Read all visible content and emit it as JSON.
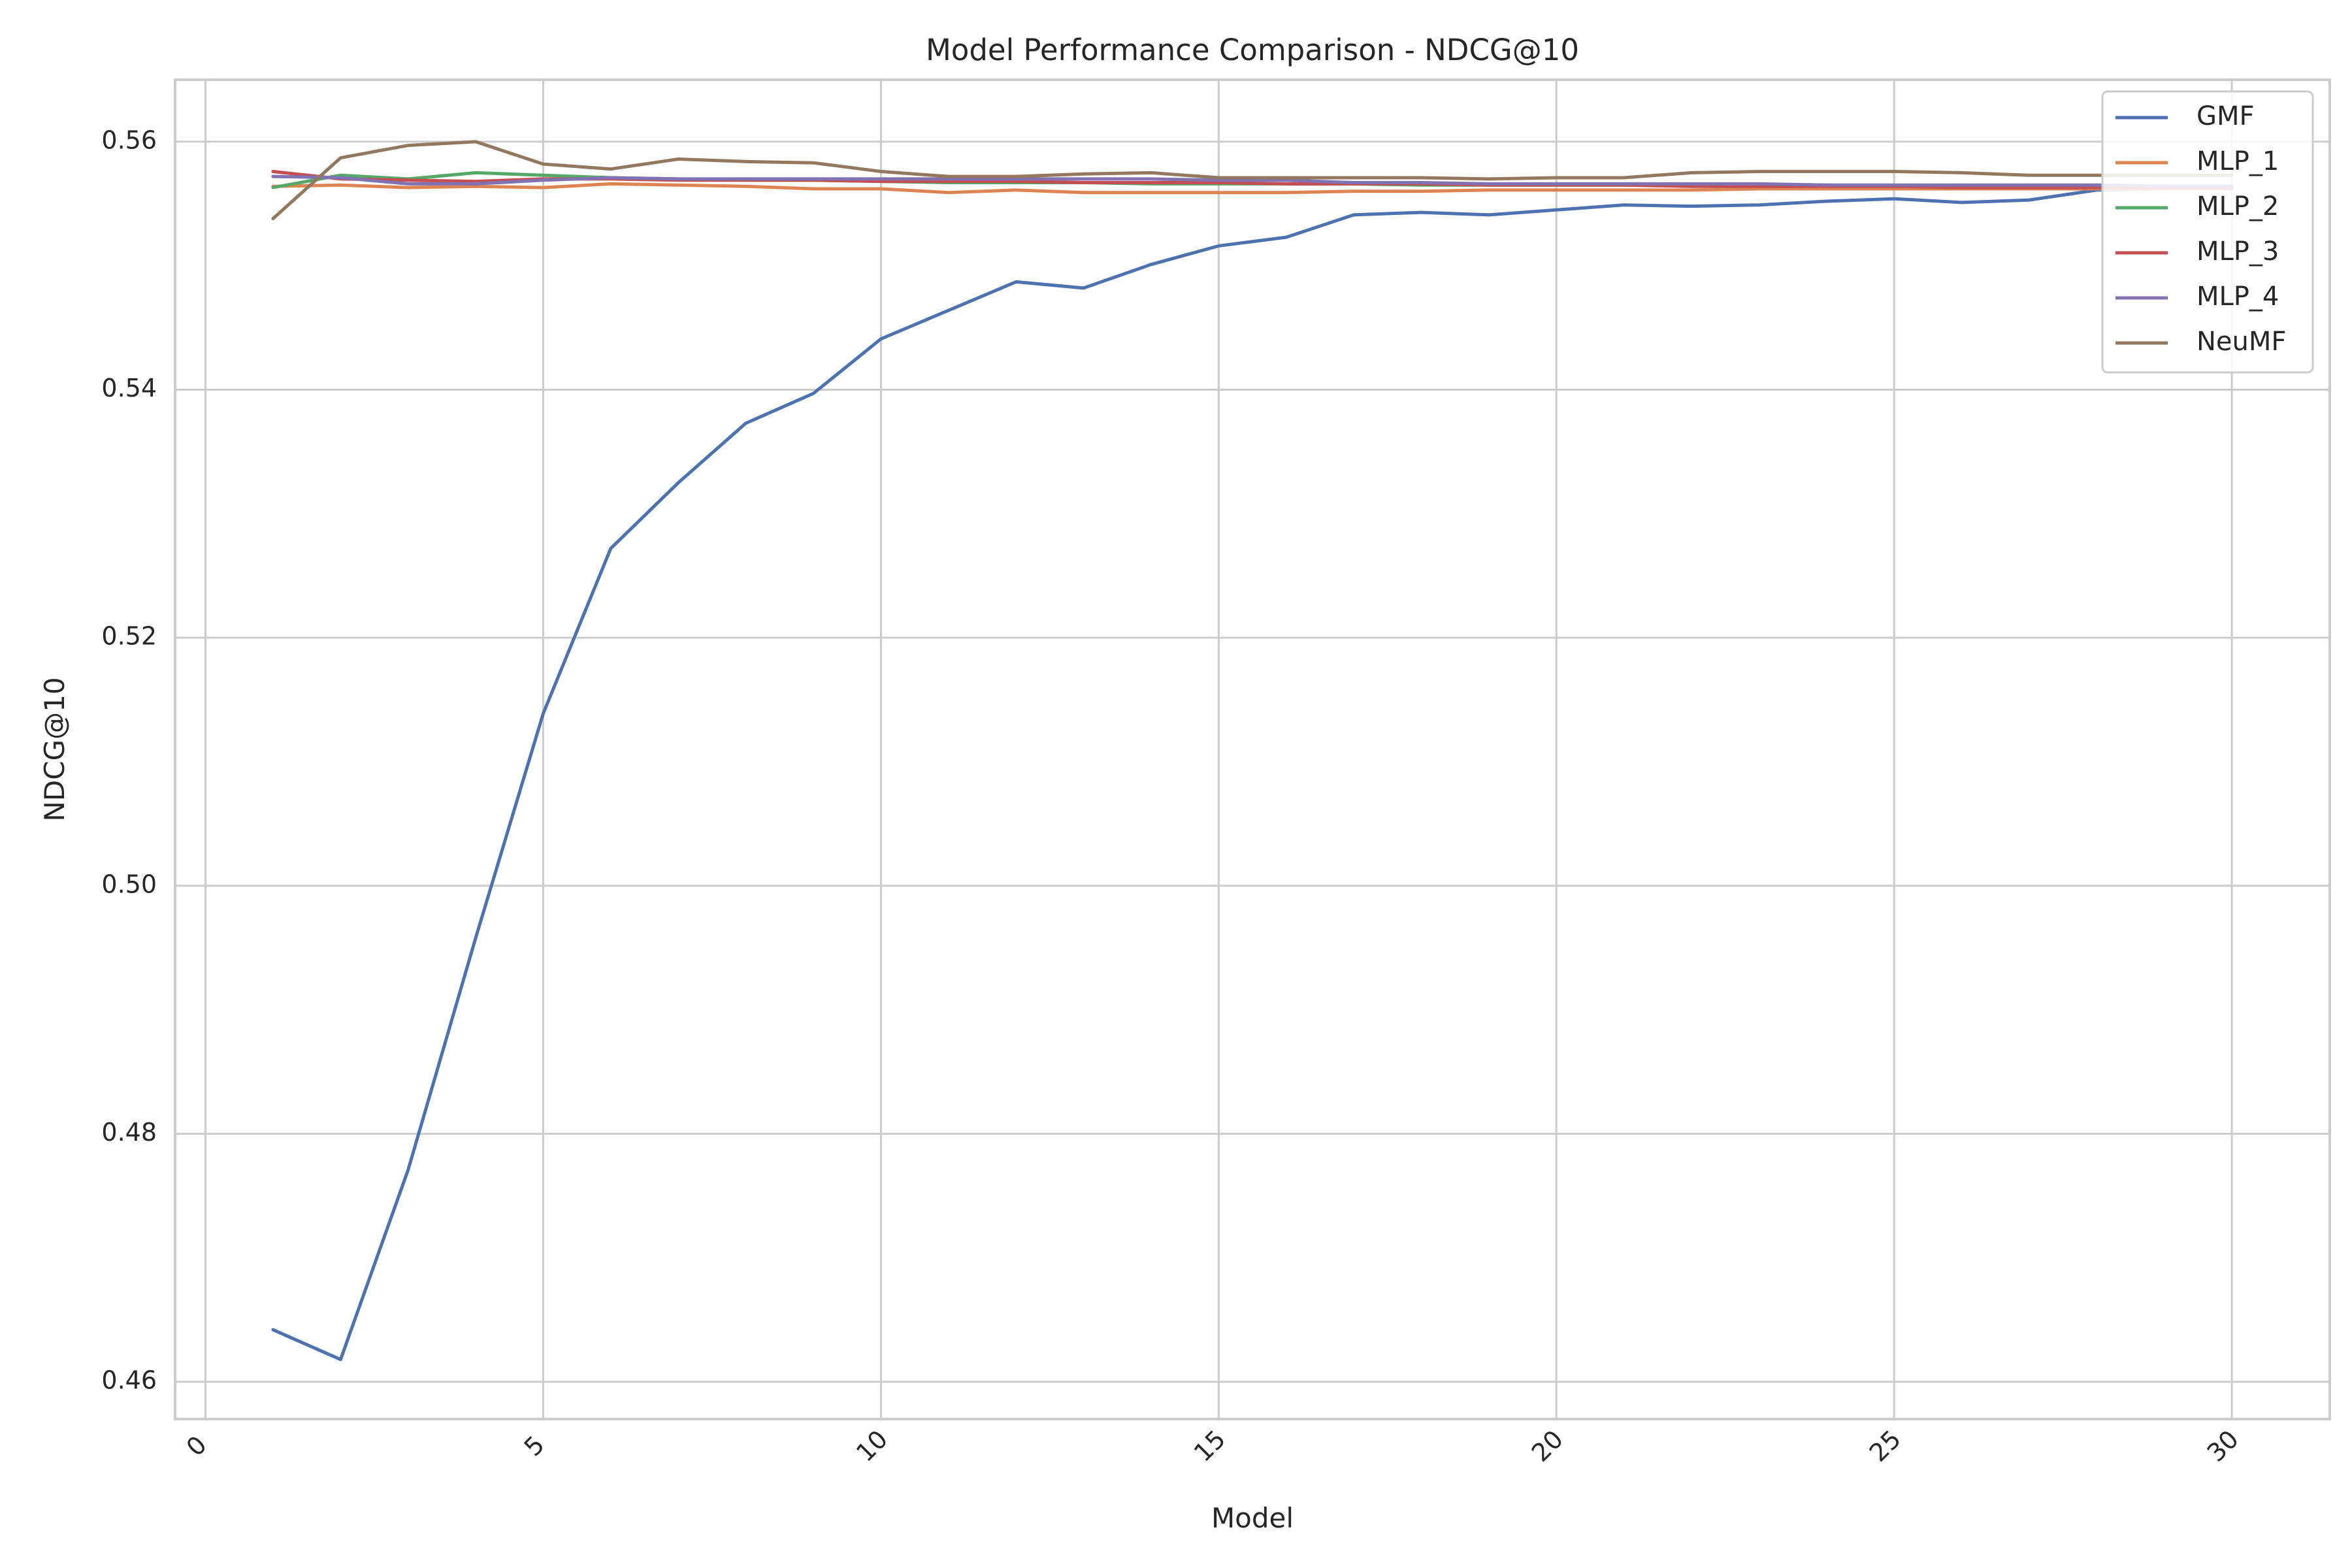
{
  "chart_data": {
    "type": "line",
    "title": "Model Performance Comparison - NDCG@10",
    "xlabel": "Model",
    "ylabel": "NDCG@10",
    "xlim": [
      -0.45,
      31.45
    ],
    "ylim": [
      0.457,
      0.565
    ],
    "grid": true,
    "legend_position": "top-right",
    "xticks": [
      0,
      5,
      10,
      15,
      20,
      25,
      30
    ],
    "xtick_labels": [
      "0",
      "5",
      "10",
      "15",
      "20",
      "25",
      "30"
    ],
    "yticks": [
      0.46,
      0.48,
      0.5,
      0.52,
      0.54,
      0.56
    ],
    "ytick_labels": [
      "0.46",
      "0.48",
      "0.50",
      "0.52",
      "0.54",
      "0.56"
    ],
    "x": [
      1,
      2,
      3,
      4,
      5,
      6,
      7,
      8,
      9,
      10,
      11,
      12,
      13,
      14,
      15,
      16,
      17,
      18,
      19,
      20,
      21,
      22,
      23,
      24,
      25,
      26,
      27,
      28,
      29,
      30
    ],
    "series": [
      {
        "name": "GMF",
        "color": "#4c72b0",
        "values": [
          0.4642,
          0.4618,
          0.4771,
          0.4958,
          0.5139,
          0.5272,
          0.5325,
          0.5373,
          0.5397,
          0.5441,
          0.5464,
          0.5487,
          0.5482,
          0.5501,
          0.5516,
          0.5523,
          0.5541,
          0.5543,
          0.5541,
          0.5545,
          0.5549,
          0.5548,
          0.5549,
          0.5552,
          0.5554,
          0.5551,
          0.5553,
          0.5561,
          0.5562,
          0.5563
        ]
      },
      {
        "name": "MLP_1",
        "color": "#dd8452",
        "values": [
          0.5564,
          0.5565,
          0.5563,
          0.5564,
          0.5563,
          0.5566,
          0.5565,
          0.5564,
          0.5562,
          0.5562,
          0.5559,
          0.5561,
          0.5559,
          0.5559,
          0.5559,
          0.5559,
          0.556,
          0.556,
          0.5561,
          0.5561,
          0.5561,
          0.5561,
          0.5562,
          0.5562,
          0.5562,
          0.5562,
          0.5562,
          0.5562,
          0.5562,
          0.5562
        ]
      },
      {
        "name": "MLP_2",
        "color": "#55a868",
        "values": [
          0.5563,
          0.5573,
          0.557,
          0.5575,
          0.5573,
          0.5571,
          0.557,
          0.5569,
          0.5569,
          0.5568,
          0.5567,
          0.5567,
          0.5567,
          0.5566,
          0.5566,
          0.5566,
          0.5566,
          0.5565,
          0.5565,
          0.5565,
          0.5565,
          0.5565,
          0.5565,
          0.5565,
          0.5564,
          0.5564,
          0.5564,
          0.5564,
          0.5564,
          0.5564
        ]
      },
      {
        "name": "MLP_3",
        "color": "#c44e52",
        "values": [
          0.5576,
          0.557,
          0.5569,
          0.5568,
          0.557,
          0.557,
          0.5569,
          0.5569,
          0.5569,
          0.5568,
          0.5568,
          0.5568,
          0.5567,
          0.5567,
          0.5567,
          0.5566,
          0.5566,
          0.5566,
          0.5565,
          0.5565,
          0.5565,
          0.5564,
          0.5564,
          0.5564,
          0.5564,
          0.5563,
          0.5563,
          0.5563,
          0.5563,
          0.5563
        ]
      },
      {
        "name": "MLP_4",
        "color": "#8172b3",
        "values": [
          0.5572,
          0.5571,
          0.5566,
          0.5566,
          0.5569,
          0.5571,
          0.557,
          0.557,
          0.557,
          0.557,
          0.557,
          0.557,
          0.557,
          0.557,
          0.5569,
          0.5569,
          0.5567,
          0.5567,
          0.5566,
          0.5566,
          0.5566,
          0.5566,
          0.5566,
          0.5565,
          0.5565,
          0.5565,
          0.5565,
          0.5565,
          0.5564,
          0.5564
        ]
      },
      {
        "name": "NeuMF",
        "color": "#937860",
        "values": [
          0.5538,
          0.5587,
          0.5597,
          0.56,
          0.5582,
          0.5578,
          0.5586,
          0.5584,
          0.5583,
          0.5576,
          0.5572,
          0.5572,
          0.5574,
          0.5575,
          0.5571,
          0.5571,
          0.5571,
          0.5571,
          0.557,
          0.5571,
          0.5571,
          0.5575,
          0.5576,
          0.5576,
          0.5576,
          0.5575,
          0.5573,
          0.5573,
          0.5573,
          0.5573
        ]
      }
    ]
  }
}
